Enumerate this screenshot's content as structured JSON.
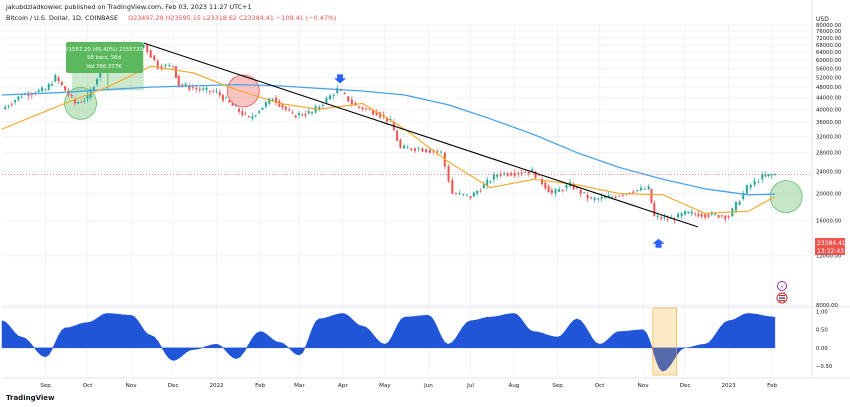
{
  "header": {
    "publisher": "jakubdzladkowiec published on TradingView.com, Feb 03, 2023 11:27 UTC+1",
    "symbol": "Bitcoin / U.S. Dollar, 1D, COINBASE",
    "ohlc": "O23497.29 H23595.15 L23318.62 C23384.41 −109.41 (−0.47%)"
  },
  "currency": "USD",
  "price_label": {
    "price": "23384.41",
    "countdown": "13:32:43"
  },
  "measure_box": {
    "line1": "21557.20 (45.40%) 2155720",
    "line2": "56 bars, 56d",
    "line3": "Vol 786.377K"
  },
  "footer": {
    "logo": "TradingView"
  },
  "colors": {
    "up": "#26a69a",
    "down": "#ef5350",
    "ma_short": "#f5a623",
    "ma_long": "#4aa3e8",
    "trendline": "#000000",
    "oscillator": "#1f55d6",
    "arrow": "#2962ff"
  },
  "chart_data": [
    {
      "type": "line",
      "title": "",
      "y_axis_scale": "log",
      "ylim": [
        8000,
        80000
      ],
      "y_ticks": [
        "80000.00",
        "76000.00",
        "72000.00",
        "68000.00",
        "64000.00",
        "60000.00",
        "56000.00",
        "52000.00",
        "48000.00",
        "44000.00",
        "40000.00",
        "36000.00",
        "32000.00",
        "28000.00",
        "24000.00",
        "20000.00",
        "16000.00",
        "12000.00",
        "8000.00"
      ],
      "x_ticks": [
        "Sep",
        "Oct",
        "Nov",
        "Dec",
        "2022",
        "Feb",
        "Mar",
        "Apr",
        "May",
        "Jun",
        "Jul",
        "Aug",
        "Sep",
        "Oct",
        "Nov",
        "Dec",
        "2023",
        "Feb"
      ],
      "x_tick_dates": [
        "2021-09-01",
        "2021-10-01",
        "2021-11-01",
        "2021-12-01",
        "2022-01-01",
        "2022-02-01",
        "2022-03-01",
        "2022-04-01",
        "2022-05-01",
        "2022-06-01",
        "2022-07-01",
        "2022-08-01",
        "2022-09-01",
        "2022-10-01",
        "2022-11-01",
        "2022-12-01",
        "2023-01-01",
        "2023-02-01"
      ],
      "xlim": [
        "2021-08-01",
        "2023-02-28"
      ],
      "series": [
        {
          "style": "candles",
          "x": [
            "2021-08-01",
            "2021-08-15",
            "2021-09-01",
            "2021-09-08",
            "2021-09-22",
            "2021-10-01",
            "2021-10-10",
            "2021-10-20",
            "2021-10-28",
            "2021-11-10",
            "2021-11-20",
            "2021-12-01",
            "2021-12-05",
            "2021-12-20",
            "2022-01-01",
            "2022-01-10",
            "2022-01-24",
            "2022-02-10",
            "2022-02-24",
            "2022-03-10",
            "2022-03-28",
            "2022-04-10",
            "2022-04-25",
            "2022-05-05",
            "2022-05-12",
            "2022-05-25",
            "2022-06-10",
            "2022-06-18",
            "2022-07-01",
            "2022-07-20",
            "2022-08-14",
            "2022-08-28",
            "2022-09-10",
            "2022-09-25",
            "2022-10-10",
            "2022-10-25",
            "2022-11-05",
            "2022-11-09",
            "2022-11-21",
            "2022-12-01",
            "2022-12-20",
            "2023-01-01",
            "2023-01-14",
            "2023-01-25",
            "2023-02-03"
          ],
          "values": [
            40000,
            45000,
            47000,
            52000,
            42000,
            44000,
            55000,
            62000,
            61000,
            68000,
            57000,
            57000,
            49000,
            47000,
            46000,
            42000,
            37000,
            44000,
            38000,
            39000,
            47000,
            41000,
            39000,
            36000,
            29000,
            29000,
            28000,
            20000,
            19500,
            23500,
            24000,
            20000,
            21500,
            19000,
            19500,
            20500,
            20800,
            16500,
            16200,
            17000,
            16800,
            16600,
            21000,
            23000,
            23384
          ]
        },
        {
          "name": "",
          "style": "ma_short",
          "x": [
            "2021-08-01",
            "2021-09-15",
            "2021-10-15",
            "2021-11-15",
            "2021-12-15",
            "2022-01-15",
            "2022-02-15",
            "2022-03-15",
            "2022-04-15",
            "2022-05-15",
            "2022-06-15",
            "2022-07-15",
            "2022-08-15",
            "2022-09-15",
            "2022-10-15",
            "2022-11-15",
            "2022-12-15",
            "2023-01-15",
            "2023-02-03"
          ],
          "values": [
            34000,
            42000,
            48000,
            57000,
            54000,
            47000,
            42000,
            40000,
            42000,
            34000,
            26000,
            21000,
            22500,
            21500,
            20000,
            19800,
            17000,
            17300,
            19500
          ]
        },
        {
          "name": "",
          "style": "ma_long",
          "x": [
            "2021-08-01",
            "2021-09-15",
            "2021-10-15",
            "2021-11-15",
            "2021-12-15",
            "2022-01-15",
            "2022-02-15",
            "2022-03-15",
            "2022-04-15",
            "2022-05-15",
            "2022-06-15",
            "2022-07-15",
            "2022-08-15",
            "2022-09-15",
            "2022-10-15",
            "2022-11-15",
            "2022-12-15",
            "2023-01-15",
            "2023-02-03"
          ],
          "values": [
            45000,
            46000,
            47000,
            48000,
            48500,
            49000,
            48500,
            47500,
            46500,
            45000,
            41500,
            37000,
            32500,
            28000,
            24800,
            22500,
            20800,
            19800,
            19900
          ]
        },
        {
          "name": "",
          "style": "trendline",
          "x": [
            "2021-11-10",
            "2022-12-10"
          ],
          "values": [
            69000,
            15200
          ]
        }
      ],
      "annotations": {
        "measure": {
          "x": [
            "2021-09-20",
            "2021-11-10"
          ],
          "y": [
            46700,
            69000
          ]
        },
        "circles": [
          {
            "x": "2021-09-26",
            "value": 42000,
            "color": "green"
          },
          {
            "x": "2022-01-20",
            "value": 46500,
            "color": "red"
          },
          {
            "x": "2023-02-11",
            "value": 19500,
            "color": "green"
          }
        ],
        "arrows": [
          {
            "x": "2022-03-30",
            "value": 49500,
            "direction": "down"
          },
          {
            "x": "2022-11-12",
            "value": 13800,
            "direction": "up"
          }
        ],
        "highlight": {
          "x": [
            "2022-11-08",
            "2022-11-25"
          ]
        }
      }
    },
    {
      "type": "area",
      "title": "",
      "ylim": [
        -0.75,
        1.1
      ],
      "y_ticks": [
        "1.00",
        "0.50",
        "0.00",
        "−0.50"
      ],
      "x": [
        "2021-08-01",
        "2021-08-15",
        "2021-09-01",
        "2021-09-15",
        "2021-10-01",
        "2021-10-15",
        "2021-11-01",
        "2021-11-15",
        "2021-12-01",
        "2021-12-15",
        "2022-01-01",
        "2022-01-15",
        "2022-02-01",
        "2022-02-15",
        "2022-03-01",
        "2022-03-15",
        "2022-04-01",
        "2022-04-15",
        "2022-05-01",
        "2022-05-15",
        "2022-06-01",
        "2022-06-15",
        "2022-07-01",
        "2022-07-15",
        "2022-08-01",
        "2022-08-15",
        "2022-09-01",
        "2022-09-15",
        "2022-10-01",
        "2022-10-15",
        "2022-11-01",
        "2022-11-15",
        "2022-12-01",
        "2022-12-15",
        "2023-01-01",
        "2023-01-15",
        "2023-02-03"
      ],
      "values": [
        0.75,
        0.3,
        -0.25,
        0.55,
        0.7,
        0.95,
        0.9,
        0.35,
        -0.35,
        -0.05,
        0.1,
        -0.3,
        0.45,
        0.15,
        -0.2,
        0.8,
        0.95,
        0.6,
        0.1,
        0.85,
        0.9,
        0.1,
        0.75,
        0.85,
        0.95,
        0.45,
        0.3,
        0.8,
        0.1,
        0.45,
        0.5,
        -0.65,
        0.0,
        0.1,
        0.75,
        0.95,
        0.85
      ]
    }
  ]
}
